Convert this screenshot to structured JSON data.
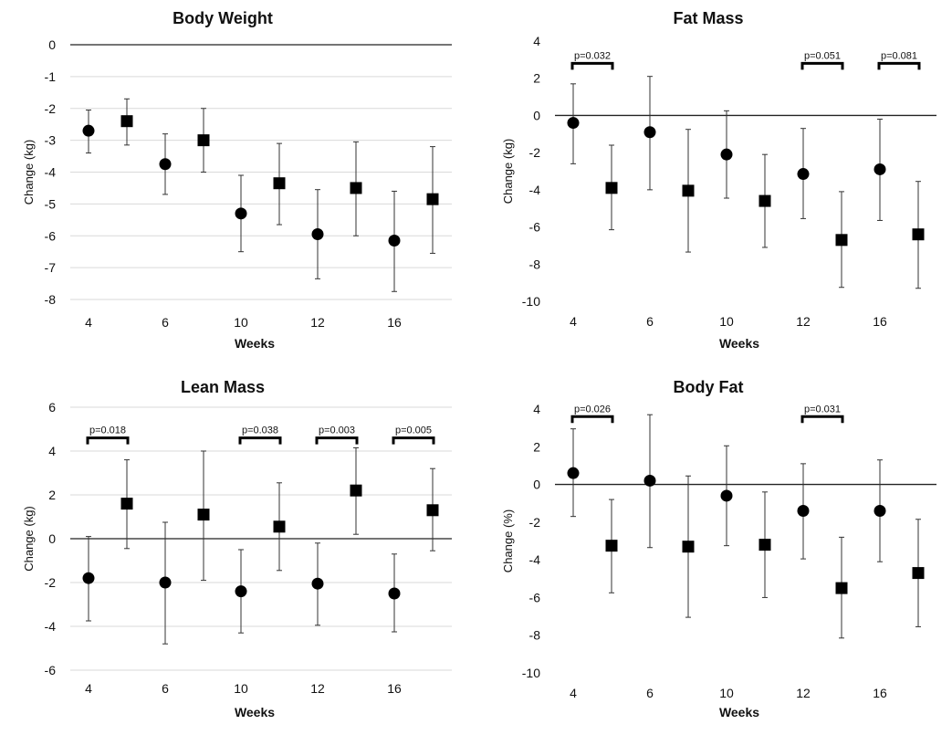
{
  "chart_data": [
    {
      "type": "scatter",
      "title": "Body Weight",
      "xlabel": "Weeks",
      "ylabel": "Change (kg)",
      "ylim": [
        -8,
        0
      ],
      "yticks": [
        0,
        -1,
        -2,
        -3,
        -4,
        -5,
        -6,
        -7,
        -8
      ],
      "yticks_labels": [
        "0",
        "-1",
        "-2",
        "-3",
        "-4",
        "-5",
        "-6",
        "-7",
        "-8"
      ],
      "grid": true,
      "x_tick_labels": [
        "4",
        "6",
        "10",
        "12",
        "16"
      ],
      "series": [
        {
          "marker": "circle",
          "values": [
            -2.7,
            -3.75,
            -5.3,
            -5.95,
            -6.15
          ],
          "err_low": [
            -3.4,
            -4.7,
            -6.5,
            -7.35,
            -7.75
          ],
          "err_high": [
            -2.05,
            -2.8,
            -4.1,
            -4.55,
            -4.6
          ]
        },
        {
          "marker": "square",
          "values": [
            -2.4,
            -3.0,
            -4.35,
            -4.5,
            -4.85
          ],
          "err_low": [
            -3.15,
            -4.0,
            -5.65,
            -6.0,
            -6.55
          ],
          "err_high": [
            -1.7,
            -2.0,
            -3.1,
            -3.05,
            -3.2
          ]
        }
      ],
      "annotations": []
    },
    {
      "type": "scatter",
      "title": "Fat Mass",
      "xlabel": "Weeks",
      "ylabel": "Change (kg)",
      "ylim": [
        -10,
        4
      ],
      "yticks": [
        4,
        2,
        0,
        -2,
        -4,
        -6,
        -8,
        -10
      ],
      "yticks_labels": [
        "4",
        "2",
        "0",
        "-2",
        "-4",
        "-6",
        "-8",
        "-10"
      ],
      "grid": false,
      "x_tick_labels": [
        "4",
        "6",
        "10",
        "12",
        "16"
      ],
      "series": [
        {
          "marker": "circle",
          "values": [
            -0.4,
            -0.9,
            -2.1,
            -3.15,
            -2.9
          ],
          "err_low": [
            -2.6,
            -4.0,
            -4.45,
            -5.55,
            -5.65
          ],
          "err_high": [
            1.7,
            2.1,
            0.25,
            -0.7,
            -0.2
          ]
        },
        {
          "marker": "square",
          "values": [
            -3.9,
            -4.05,
            -4.6,
            -6.7,
            -6.4
          ],
          "err_low": [
            -6.15,
            -7.35,
            -7.1,
            -9.25,
            -9.3
          ],
          "err_high": [
            -1.6,
            -0.75,
            -2.1,
            -4.1,
            -3.55
          ]
        }
      ],
      "annotations": [
        {
          "pair": 0,
          "label": "p=0.032",
          "y": 2.8
        },
        {
          "pair": 3,
          "label": "p=0.051",
          "y": 2.8
        },
        {
          "pair": 4,
          "label": "p=0.081",
          "y": 2.8
        }
      ]
    },
    {
      "type": "scatter",
      "title": "Lean Mass",
      "xlabel": "Weeks",
      "ylabel": "Change (kg)",
      "ylim": [
        -6,
        6
      ],
      "yticks": [
        6,
        4,
        2,
        0,
        -2,
        -4,
        -6
      ],
      "yticks_labels": [
        "6",
        "4",
        "2",
        "0",
        "-2",
        "-4",
        "-6"
      ],
      "grid": true,
      "x_tick_labels": [
        "4",
        "6",
        "10",
        "12",
        "16"
      ],
      "series": [
        {
          "marker": "circle",
          "values": [
            -1.8,
            -2.0,
            -2.4,
            -2.05,
            -2.5
          ],
          "err_low": [
            -3.75,
            -4.8,
            -4.3,
            -3.95,
            -4.25
          ],
          "err_high": [
            0.1,
            0.75,
            -0.5,
            -0.2,
            -0.7
          ]
        },
        {
          "marker": "square",
          "values": [
            1.6,
            1.1,
            0.55,
            2.2,
            1.3
          ],
          "err_low": [
            -0.45,
            -1.9,
            -1.45,
            0.2,
            -0.55
          ],
          "err_high": [
            3.6,
            4.0,
            2.55,
            4.15,
            3.2
          ]
        }
      ],
      "annotations": [
        {
          "pair": 0,
          "label": "p=0.018",
          "y": 4.6
        },
        {
          "pair": 2,
          "label": "p=0.038",
          "y": 4.6
        },
        {
          "pair": 3,
          "label": "p=0.003",
          "y": 4.6
        },
        {
          "pair": 4,
          "label": "p=0.005",
          "y": 4.6
        }
      ]
    },
    {
      "type": "scatter",
      "title": "Body Fat",
      "xlabel": "Weeks",
      "ylabel": "Change (%)",
      "ylim": [
        -10,
        4
      ],
      "yticks": [
        4,
        2,
        0,
        -2,
        -4,
        -6,
        -8,
        -10
      ],
      "yticks_labels": [
        "4",
        "2",
        "0",
        "-2",
        "-4",
        "-6",
        "-8",
        "-10"
      ],
      "grid": false,
      "x_tick_labels": [
        "4",
        "6",
        "10",
        "12",
        "16"
      ],
      "series": [
        {
          "marker": "circle",
          "values": [
            0.6,
            0.2,
            -0.6,
            -1.4,
            -1.4
          ],
          "err_low": [
            -1.7,
            -3.35,
            -3.25,
            -3.95,
            -4.1
          ],
          "err_high": [
            2.95,
            3.7,
            2.05,
            1.1,
            1.3
          ]
        },
        {
          "marker": "square",
          "values": [
            -3.25,
            -3.3,
            -3.2,
            -5.5,
            -4.7
          ],
          "err_low": [
            -5.75,
            -7.05,
            -6.0,
            -8.15,
            -7.55
          ],
          "err_high": [
            -0.8,
            0.45,
            -0.4,
            -2.8,
            -1.85
          ]
        }
      ],
      "annotations": [
        {
          "pair": 0,
          "label": "p=0.026",
          "y": 3.6
        },
        {
          "pair": 3,
          "label": "p=0.031",
          "y": 3.6
        }
      ]
    }
  ]
}
